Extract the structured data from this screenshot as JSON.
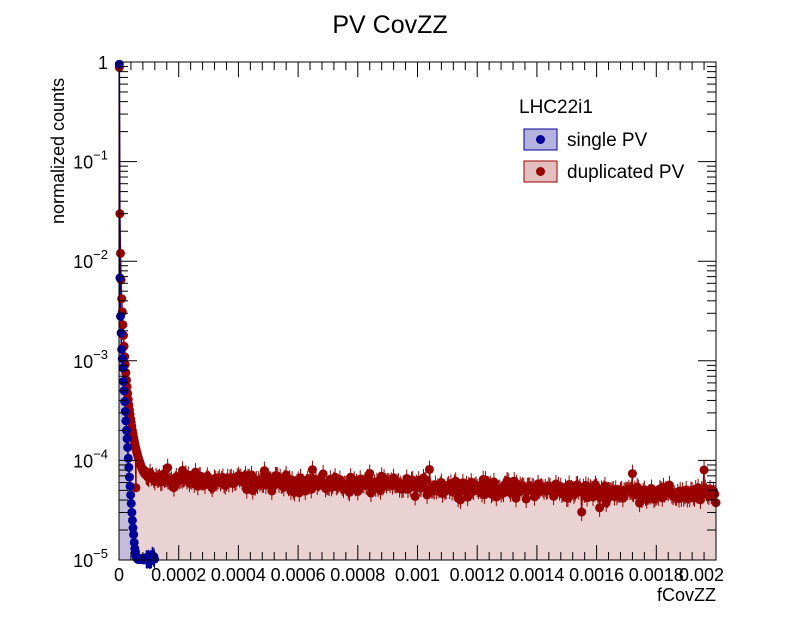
{
  "chart_data": {
    "type": "scatter",
    "title": "PV CovZZ",
    "xlabel": "fCovZZ",
    "ylabel": "normalized counts",
    "xlim": [
      0,
      0.002
    ],
    "ylim": [
      1e-05,
      1
    ],
    "yscale": "log",
    "x_tick_labels": [
      "0",
      "0.0002",
      "0.0004",
      "0.0006",
      "0.0008",
      "0.001",
      "0.0012",
      "0.0014",
      "0.0016",
      "0.0018",
      "0.002"
    ],
    "y_tick_labels": [
      {
        "value": 1e-05,
        "base": "10",
        "exp": "−5"
      },
      {
        "value": 0.0001,
        "base": "10",
        "exp": "−4"
      },
      {
        "value": 0.001,
        "base": "10",
        "exp": "−3"
      },
      {
        "value": 0.01,
        "base": "10",
        "exp": "−2"
      },
      {
        "value": 0.1,
        "base": "10",
        "exp": "−1"
      },
      {
        "value": 1,
        "base": "1",
        "exp": ""
      }
    ],
    "grid": false,
    "legend": {
      "position": "top-right",
      "header": "LHC22i1",
      "entries": [
        "single PV",
        "duplicated PV"
      ]
    },
    "series": [
      {
        "name": "single PV",
        "marker_color": "#000099",
        "fill_color": "#b3b3dd",
        "points": [
          [
            1e-06,
            0.95
          ],
          [
            3e-06,
            0.0068
          ],
          [
            5e-06,
            0.0028
          ],
          [
            7e-06,
            0.0019
          ],
          [
            9e-06,
            0.0013
          ],
          [
            1.1e-05,
            0.00105
          ],
          [
            1.3e-05,
            0.00085
          ],
          [
            1.5e-05,
            0.00062
          ],
          [
            1.7e-05,
            0.0005
          ],
          [
            1.9e-05,
            0.00039
          ],
          [
            2.1e-05,
            0.00031
          ],
          [
            2.3e-05,
            0.00025
          ],
          [
            2.5e-05,
            0.0002
          ],
          [
            2.7e-05,
            0.000165
          ],
          [
            2.9e-05,
            0.000135
          ],
          [
            3.1e-05,
            0.000105
          ],
          [
            3.3e-05,
            8.5e-05
          ],
          [
            3.5e-05,
            6.8e-05
          ],
          [
            3.7e-05,
            5.5e-05
          ],
          [
            3.9e-05,
            4.5e-05
          ],
          [
            4.1e-05,
            3.7e-05
          ],
          [
            4.3e-05,
            3e-05
          ],
          [
            4.5e-05,
            2.5e-05
          ],
          [
            4.7e-05,
            2.1e-05
          ],
          [
            4.9e-05,
            1.8e-05
          ],
          [
            5.1e-05,
            1.5e-05
          ],
          [
            5.3e-05,
            1.3e-05
          ],
          [
            5.5e-05,
            1.2e-05
          ],
          [
            5.7e-05,
            1.1e-05
          ],
          [
            5.9e-05,
            1.05e-05
          ],
          [
            6.1e-05,
            1.03e-05
          ],
          [
            6.3e-05,
            1.02e-05
          ],
          [
            6.5e-05,
            1.01e-05
          ],
          [
            6.7e-05,
            1.04e-05
          ],
          [
            6.9e-05,
            1.01e-05
          ],
          [
            7.1e-05,
            1.02e-05
          ],
          [
            7.3e-05,
            1.01e-05
          ],
          [
            7.5e-05,
            1.02e-05
          ],
          [
            7.7e-05,
            1.04e-05
          ],
          [
            7.9e-05,
            1.01e-05
          ],
          [
            8.1e-05,
            1.02e-05
          ],
          [
            8.3e-05,
            1e-05
          ],
          [
            8.5e-05,
            1.01e-05
          ],
          [
            8.7e-05,
            1.05e-05
          ],
          [
            8.9e-05,
            1.03e-05
          ],
          [
            9.1e-05,
            1.02e-05
          ],
          [
            9.3e-05,
            1.01e-05
          ],
          [
            9.5e-05,
            1.01e-05
          ],
          [
            9.7e-05,
            1.02e-05
          ],
          [
            9.9e-05,
            1.03e-05
          ],
          [
            0.000101,
            1.01e-05
          ],
          [
            0.000103,
            1e-05
          ],
          [
            0.000105,
            1.02e-05
          ],
          [
            0.000107,
            1.01e-05
          ],
          [
            0.000109,
            1.02e-05
          ],
          [
            0.000111,
            1.1e-05
          ],
          [
            0.000113,
            1.1e-05
          ],
          [
            0.000115,
            1.05e-05
          ],
          [
            0.000117,
            1.08e-05
          ],
          [
            0.000119,
            1.02e-05
          ]
        ]
      },
      {
        "name": "duplicated PV",
        "marker_color": "#990000",
        "fill_color": "#e3bfbf",
        "points": [
          [
            1e-06,
            0.88
          ],
          [
            3e-06,
            0.03
          ],
          [
            5e-06,
            0.012
          ],
          [
            7e-06,
            0.0065
          ],
          [
            9e-06,
            0.0042
          ],
          [
            1.1e-05,
            0.0031
          ],
          [
            1.3e-05,
            0.0023
          ],
          [
            1.5e-05,
            0.0018
          ],
          [
            1.7e-05,
            0.0014
          ],
          [
            1.9e-05,
            0.0011
          ],
          [
            2.1e-05,
            0.00092
          ],
          [
            2.3e-05,
            0.00076
          ],
          [
            2.5e-05,
            0.00064
          ],
          [
            2.7e-05,
            0.00055
          ],
          [
            2.9e-05,
            0.00047
          ],
          [
            3.1e-05,
            0.00041
          ],
          [
            3.3e-05,
            0.00036
          ],
          [
            3.5e-05,
            0.00032
          ],
          [
            3.7e-05,
            0.00029
          ],
          [
            3.9e-05,
            0.00026
          ],
          [
            4.1e-05,
            0.00024
          ],
          [
            4.3e-05,
            0.00022
          ],
          [
            4.5e-05,
            0.0002
          ],
          [
            4.7e-05,
            0.000185
          ],
          [
            4.9e-05,
            0.00017
          ],
          [
            5.1e-05,
            0.000158
          ],
          [
            5.3e-05,
            0.000148
          ],
          [
            5.5e-05,
            0.000138
          ],
          [
            5.7e-05,
            0.00013
          ],
          [
            5.9e-05,
            0.000123
          ],
          [
            6.1e-05,
            0.000117
          ],
          [
            6.3e-05,
            0.000111
          ],
          [
            6.5e-05,
            0.000106
          ],
          [
            6.7e-05,
            0.000101
          ],
          [
            6.9e-05,
            9.7e-05
          ],
          [
            7.1e-05,
            9.3e-05
          ],
          [
            7.3e-05,
            8.9e-05
          ],
          [
            7.5e-05,
            8.6e-05
          ],
          [
            7.7e-05,
            8.3e-05
          ],
          [
            7.9e-05,
            8e-05
          ],
          [
            8.1e-05,
            7.8e-05
          ],
          [
            8.3e-05,
            7.6e-05
          ],
          [
            8.5e-05,
            7.4e-05
          ],
          [
            8.7e-05,
            7.3e-05
          ],
          [
            8.9e-05,
            7.2e-05
          ],
          [
            9.1e-05,
            7.1e-05
          ],
          [
            9.3e-05,
            7e-05
          ],
          [
            9.5e-05,
            6.9e-05
          ],
          [
            9.7e-05,
            6.8e-05
          ],
          [
            9.9e-05,
            6.8e-05
          ]
        ],
        "flat_region": {
          "x_start": 0.0001,
          "x_end": 0.002,
          "step": 4e-06,
          "y_at_start": 6.5e-05,
          "y_at_end": 4.5e-05,
          "relative_scatter": 0.17,
          "outliers": [
            [
              0.000163,
              8.45e-05
            ],
            [
              0.000213,
              7.95e-05
            ],
            [
              0.000487,
              7.89e-05
            ],
            [
              0.000648,
              8.06e-05
            ],
            [
              0.00084,
              7.39e-05
            ],
            [
              0.00104,
              8.11e-05
            ],
            [
              0.00172,
              7.37e-05
            ],
            [
              0.00196,
              8.02e-05
            ],
            [
              5.67e-05,
              5.31e-05
            ],
            [
              0.00155,
              3.03e-05
            ],
            [
              0.00161,
              3.34e-05
            ],
            [
              0.00133,
              4.17e-05
            ]
          ]
        }
      }
    ]
  }
}
